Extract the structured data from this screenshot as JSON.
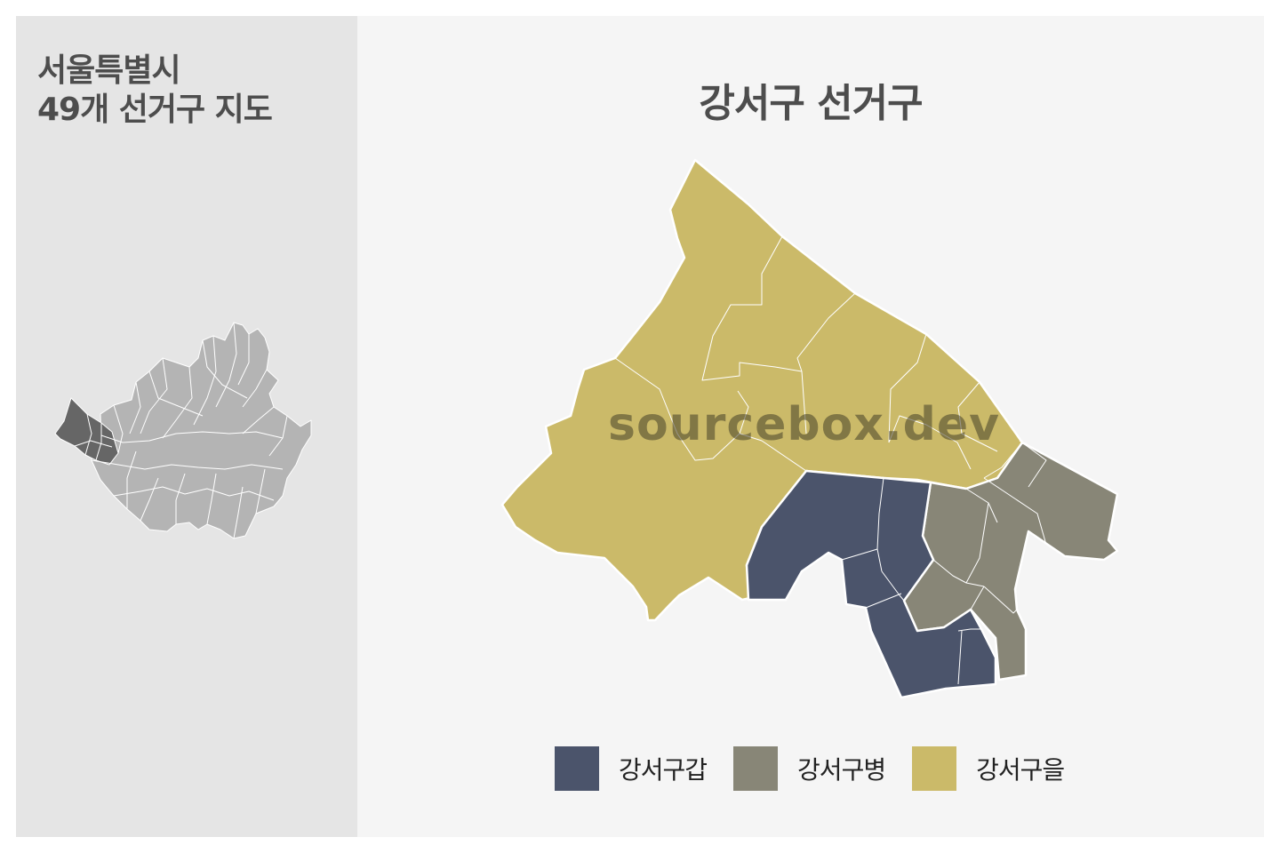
{
  "sidebar": {
    "title_line1": "서울특별시",
    "title_line2": "49개 선거구 지도"
  },
  "main": {
    "title": "강서구 선거구",
    "watermark": "sourcebox.dev"
  },
  "legend": [
    {
      "label": "강서구갑",
      "color": "#4b546b"
    },
    {
      "label": "강서구병",
      "color": "#888677"
    },
    {
      "label": "강서구을",
      "color": "#cbba69"
    }
  ],
  "overview": {
    "highlight_color": "#666666",
    "base_color": "#b4b4b4"
  }
}
